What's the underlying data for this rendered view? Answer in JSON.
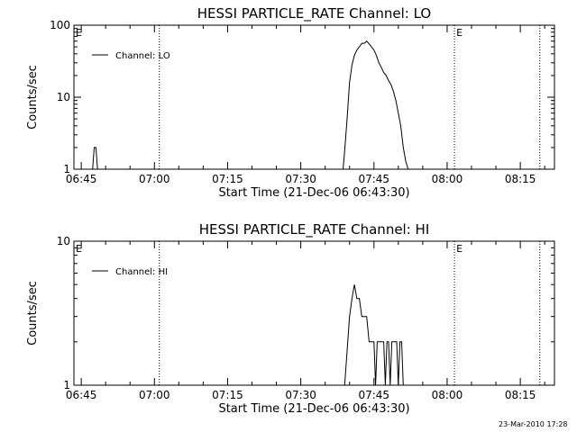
{
  "chart_data": [
    {
      "type": "line",
      "title": "HESSI PARTICLE_RATE Channel: LO",
      "xlabel": "Start Time (21-Dec-06 06:43:30)",
      "ylabel": "Counts/sec",
      "y_scale": "log",
      "xlim": [
        "06:43:30",
        "08:22:00"
      ],
      "ylim": [
        1,
        100
      ],
      "x_ticks": [
        "06:45",
        "07:00",
        "07:15",
        "07:30",
        "07:45",
        "08:00",
        "08:15"
      ],
      "y_ticks": [
        "1",
        "10",
        "100"
      ],
      "legend": "top-left",
      "series": [
        {
          "name": "Channel: LO",
          "x": [
            "06:47:00",
            "06:47:20",
            "06:47:40",
            "06:48:00",
            "06:48:20",
            "06:48:40",
            "07:38:40",
            "07:39:00",
            "07:39:30",
            "07:40:00",
            "07:40:30",
            "07:41:00",
            "07:41:30",
            "07:42:00",
            "07:42:30",
            "07:43:00",
            "07:43:30",
            "07:44:00",
            "07:44:30",
            "07:45:00",
            "07:45:30",
            "07:46:00",
            "07:46:30",
            "07:47:00",
            "07:47:30",
            "07:48:00",
            "07:48:30",
            "07:49:00",
            "07:49:30",
            "07:50:00",
            "07:50:30",
            "07:51:00",
            "07:51:30",
            "07:52:00"
          ],
          "values": [
            1,
            1,
            2,
            2,
            1,
            1,
            1,
            1.8,
            5,
            16,
            28,
            38,
            45,
            50,
            56,
            56,
            60,
            55,
            50,
            45,
            38,
            30,
            26,
            22,
            20,
            17,
            15,
            12,
            9,
            6,
            4,
            2,
            1.3,
            1
          ]
        }
      ],
      "annotations": [
        {
          "text": "E",
          "x": "06:43:30",
          "line": false
        },
        {
          "text": "",
          "x": "07:01:00",
          "line": true
        },
        {
          "text": "E",
          "x": "08:01:30",
          "line": true
        },
        {
          "text": "",
          "x": "08:19:00",
          "line": true
        }
      ]
    },
    {
      "type": "line",
      "title": "HESSI PARTICLE_RATE Channel: HI",
      "xlabel": "Start Time (21-Dec-06 06:43:30)",
      "ylabel": "Counts/sec",
      "y_scale": "log",
      "xlim": [
        "06:43:30",
        "08:22:00"
      ],
      "ylim": [
        1,
        10
      ],
      "x_ticks": [
        "06:45",
        "07:00",
        "07:15",
        "07:30",
        "07:45",
        "08:00",
        "08:15"
      ],
      "y_ticks": [
        "1",
        "10"
      ],
      "legend": "top-left",
      "series": [
        {
          "name": "Channel: HI",
          "x": [
            "07:39:00",
            "07:40:00",
            "07:40:30",
            "07:41:00",
            "07:41:30",
            "07:42:00",
            "07:42:30",
            "07:43:00",
            "07:43:30",
            "07:44:00",
            "07:44:30",
            "07:45:00",
            "07:45:20",
            "07:45:40",
            "07:46:00",
            "07:46:20",
            "07:46:40",
            "07:47:00",
            "07:47:20",
            "07:47:40",
            "07:48:00",
            "07:48:20",
            "07:48:40",
            "07:49:00",
            "07:49:20",
            "07:49:40",
            "07:50:00",
            "07:50:20",
            "07:50:40",
            "07:51:00"
          ],
          "values": [
            1,
            3,
            4,
            5,
            4,
            4,
            3,
            3,
            3,
            2,
            2,
            2,
            1,
            2,
            2,
            2,
            2,
            2,
            1,
            2,
            2,
            1,
            2,
            2,
            2,
            2,
            1,
            2,
            2,
            1
          ]
        }
      ],
      "annotations": [
        {
          "text": "E",
          "x": "06:43:30",
          "line": false
        },
        {
          "text": "",
          "x": "07:01:00",
          "line": true
        },
        {
          "text": "E",
          "x": "08:01:30",
          "line": true
        },
        {
          "text": "",
          "x": "08:19:00",
          "line": true
        }
      ]
    }
  ],
  "timestamp": "23-Mar-2010 17:28"
}
